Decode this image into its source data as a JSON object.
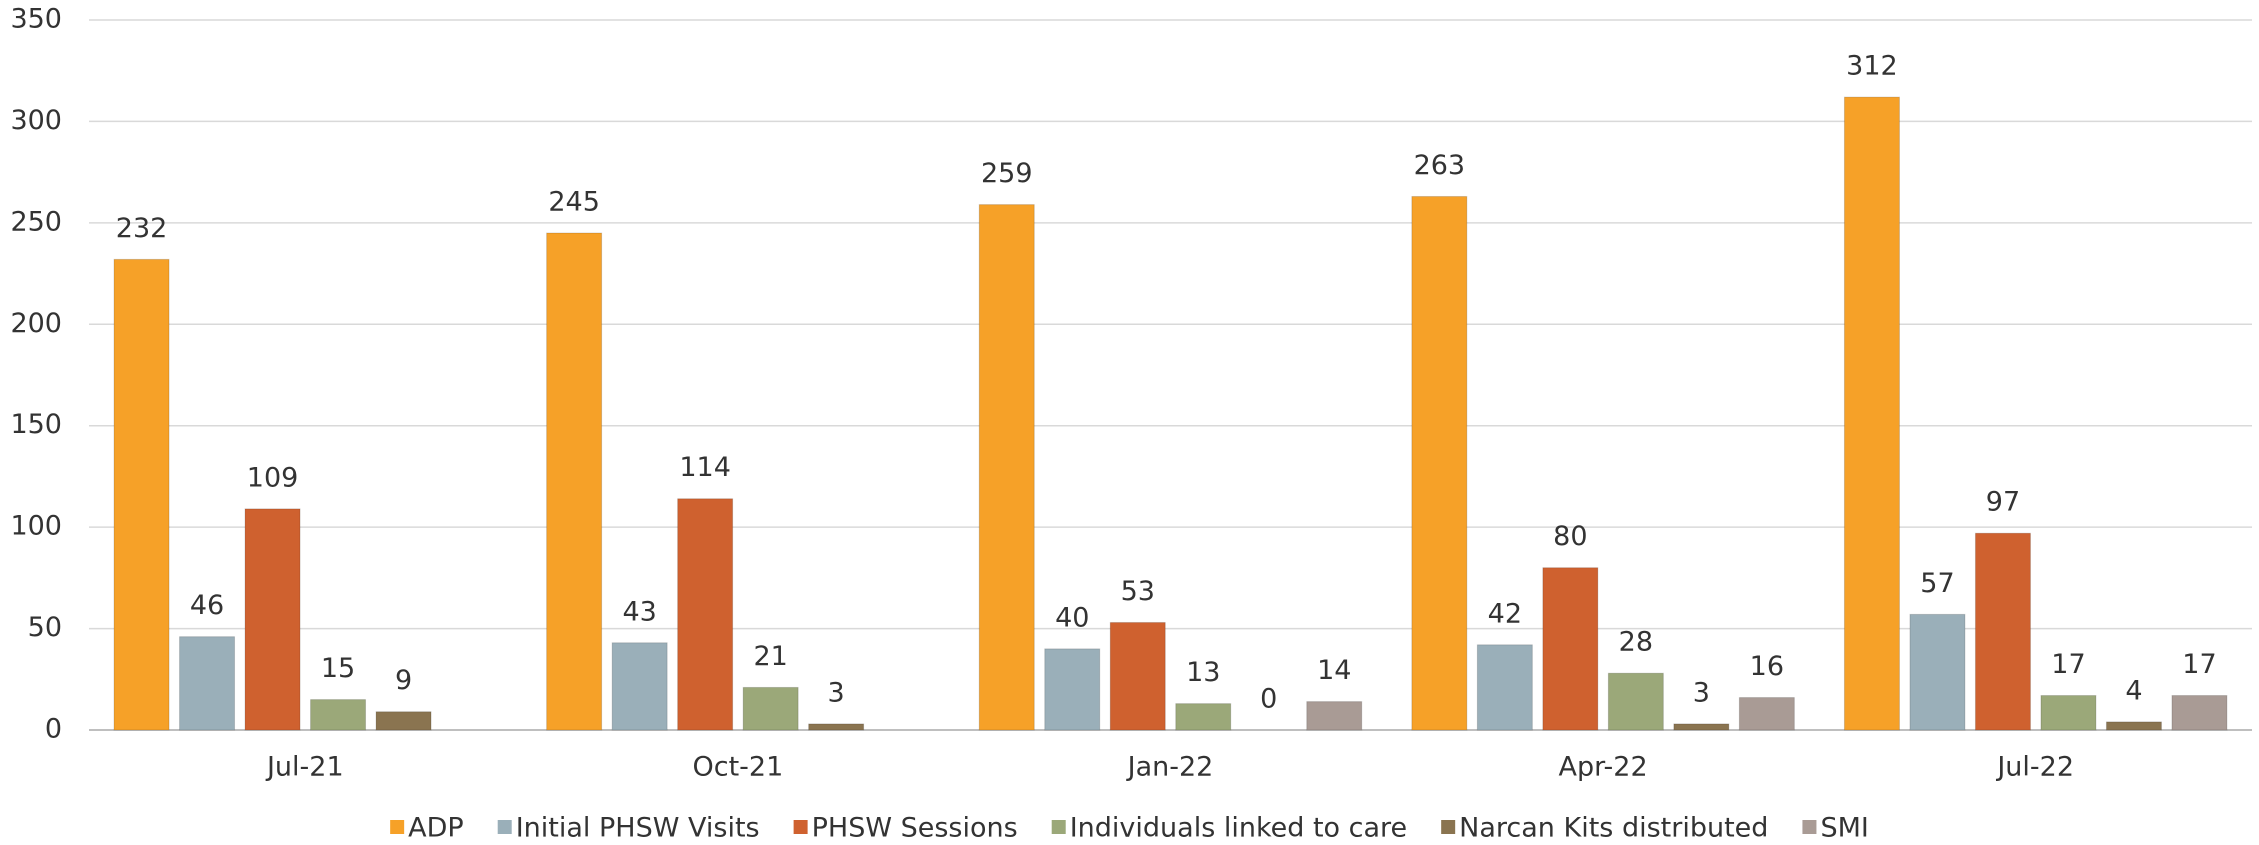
{
  "chart_data": {
    "type": "bar",
    "categories": [
      "Jul-21",
      "Oct-21",
      "Jan-22",
      "Apr-22",
      "Jul-22"
    ],
    "series": [
      {
        "name": "ADP",
        "color": "#f6a128",
        "values": [
          232,
          245,
          259,
          263,
          312
        ]
      },
      {
        "name": "Initial PHSW Visits",
        "color": "#9aafb9",
        "values": [
          46,
          43,
          40,
          42,
          57
        ]
      },
      {
        "name": "PHSW Sessions",
        "color": "#cf612f",
        "values": [
          109,
          114,
          53,
          80,
          97
        ]
      },
      {
        "name": "Individuals linked to care",
        "color": "#9ba879",
        "values": [
          15,
          21,
          13,
          28,
          17
        ]
      },
      {
        "name": "Narcan Kits distributed",
        "color": "#8a7450",
        "values": [
          9,
          3,
          0,
          3,
          4
        ]
      },
      {
        "name": "SMI",
        "color": "#a99b95",
        "values": [
          null,
          null,
          14,
          16,
          17
        ]
      }
    ],
    "ylim": [
      0,
      350
    ],
    "yticks": [
      0,
      50,
      100,
      150,
      200,
      250,
      300,
      350
    ],
    "grid": true,
    "legend": "bottom"
  }
}
